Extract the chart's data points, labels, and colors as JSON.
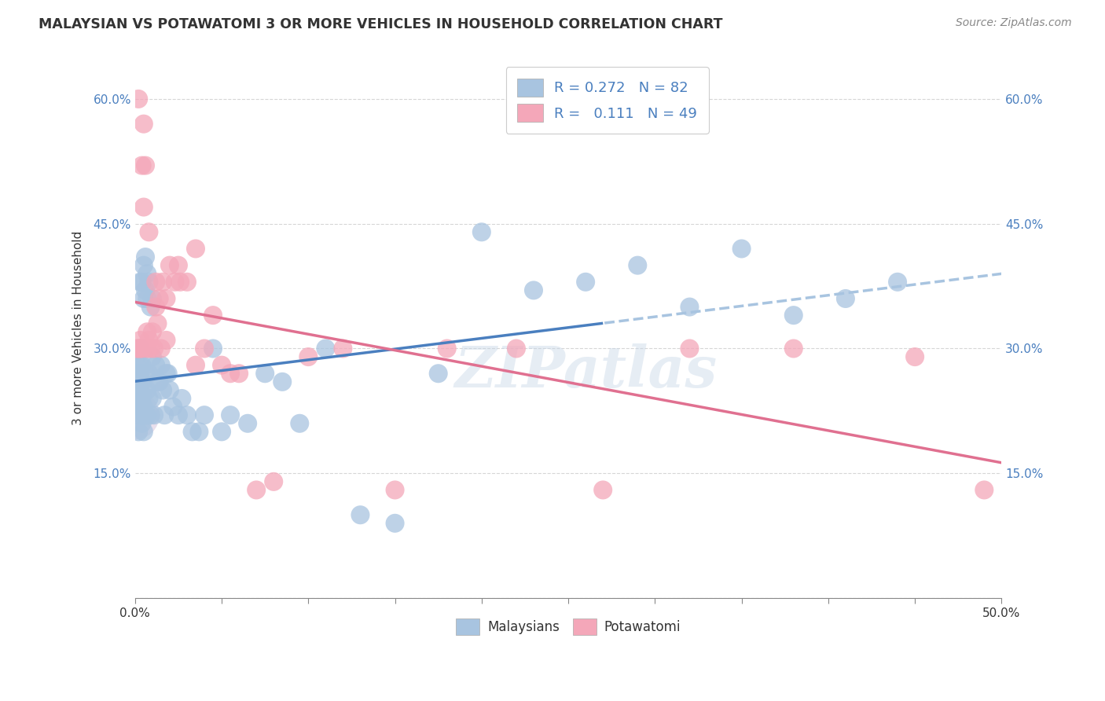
{
  "title": "MALAYSIAN VS POTAWATOMI 3 OR MORE VEHICLES IN HOUSEHOLD CORRELATION CHART",
  "source": "Source: ZipAtlas.com",
  "ylabel": "3 or more Vehicles in Household",
  "xlim": [
    0.0,
    0.5
  ],
  "ylim": [
    0.0,
    0.65
  ],
  "xtick_positions": [
    0.0,
    0.05,
    0.1,
    0.15,
    0.2,
    0.25,
    0.3,
    0.35,
    0.4,
    0.45,
    0.5
  ],
  "xtick_labels_show": [
    "0.0%",
    "",
    "",
    "",
    "",
    "",
    "",
    "",
    "",
    "",
    "50.0%"
  ],
  "ytick_positions": [
    0.0,
    0.15,
    0.3,
    0.45,
    0.6
  ],
  "ytick_labels": [
    "",
    "15.0%",
    "30.0%",
    "45.0%",
    "60.0%"
  ],
  "legend_label1": "R = 0.272   N = 82",
  "legend_label2": "R =   0.111   N = 49",
  "legend_bottom_label1": "Malaysians",
  "legend_bottom_label2": "Potawatomi",
  "blue_color": "#a8c4e0",
  "pink_color": "#f4a7b9",
  "blue_line_color": "#4a7fbf",
  "pink_line_color": "#e07090",
  "blue_dash_color": "#a8c4e0",
  "tick_color": "#4a7fbf",
  "watermark": "ZIPatlas",
  "malaysian_x": [
    0.001,
    0.001,
    0.001,
    0.001,
    0.001,
    0.002,
    0.002,
    0.002,
    0.002,
    0.002,
    0.002,
    0.003,
    0.003,
    0.003,
    0.003,
    0.003,
    0.003,
    0.003,
    0.004,
    0.004,
    0.004,
    0.004,
    0.004,
    0.004,
    0.005,
    0.005,
    0.005,
    0.005,
    0.005,
    0.006,
    0.006,
    0.006,
    0.006,
    0.007,
    0.007,
    0.007,
    0.007,
    0.008,
    0.008,
    0.008,
    0.009,
    0.009,
    0.01,
    0.01,
    0.01,
    0.011,
    0.012,
    0.013,
    0.014,
    0.015,
    0.016,
    0.017,
    0.018,
    0.019,
    0.02,
    0.022,
    0.025,
    0.027,
    0.03,
    0.033,
    0.037,
    0.04,
    0.045,
    0.05,
    0.055,
    0.065,
    0.075,
    0.085,
    0.095,
    0.11,
    0.13,
    0.15,
    0.175,
    0.2,
    0.23,
    0.26,
    0.29,
    0.32,
    0.35,
    0.38,
    0.41,
    0.44
  ],
  "malaysian_y": [
    0.25,
    0.27,
    0.26,
    0.28,
    0.22,
    0.25,
    0.24,
    0.26,
    0.23,
    0.27,
    0.2,
    0.38,
    0.27,
    0.25,
    0.23,
    0.26,
    0.28,
    0.3,
    0.24,
    0.38,
    0.26,
    0.28,
    0.22,
    0.21,
    0.4,
    0.36,
    0.25,
    0.23,
    0.2,
    0.41,
    0.37,
    0.27,
    0.22,
    0.39,
    0.36,
    0.25,
    0.22,
    0.38,
    0.27,
    0.24,
    0.35,
    0.22,
    0.36,
    0.29,
    0.24,
    0.22,
    0.28,
    0.26,
    0.26,
    0.28,
    0.25,
    0.22,
    0.27,
    0.27,
    0.25,
    0.23,
    0.22,
    0.24,
    0.22,
    0.2,
    0.2,
    0.22,
    0.3,
    0.2,
    0.22,
    0.21,
    0.27,
    0.26,
    0.21,
    0.3,
    0.1,
    0.09,
    0.27,
    0.44,
    0.37,
    0.38,
    0.4,
    0.35,
    0.42,
    0.34,
    0.36,
    0.38
  ],
  "potawatomi_x": [
    0.001,
    0.002,
    0.003,
    0.003,
    0.004,
    0.005,
    0.006,
    0.007,
    0.007,
    0.008,
    0.009,
    0.01,
    0.011,
    0.012,
    0.013,
    0.014,
    0.015,
    0.016,
    0.018,
    0.02,
    0.023,
    0.026,
    0.03,
    0.035,
    0.04,
    0.045,
    0.05,
    0.06,
    0.07,
    0.08,
    0.1,
    0.12,
    0.15,
    0.18,
    0.22,
    0.27,
    0.32,
    0.38,
    0.45,
    0.49,
    0.002,
    0.004,
    0.005,
    0.008,
    0.012,
    0.018,
    0.025,
    0.035,
    0.055
  ],
  "potawatomi_y": [
    0.3,
    0.3,
    0.3,
    0.31,
    0.3,
    0.57,
    0.52,
    0.3,
    0.32,
    0.31,
    0.3,
    0.32,
    0.3,
    0.35,
    0.33,
    0.36,
    0.3,
    0.38,
    0.31,
    0.4,
    0.38,
    0.38,
    0.38,
    0.42,
    0.3,
    0.34,
    0.28,
    0.27,
    0.13,
    0.14,
    0.29,
    0.3,
    0.13,
    0.3,
    0.3,
    0.13,
    0.3,
    0.3,
    0.29,
    0.13,
    0.6,
    0.52,
    0.47,
    0.44,
    0.38,
    0.36,
    0.4,
    0.28,
    0.27
  ]
}
